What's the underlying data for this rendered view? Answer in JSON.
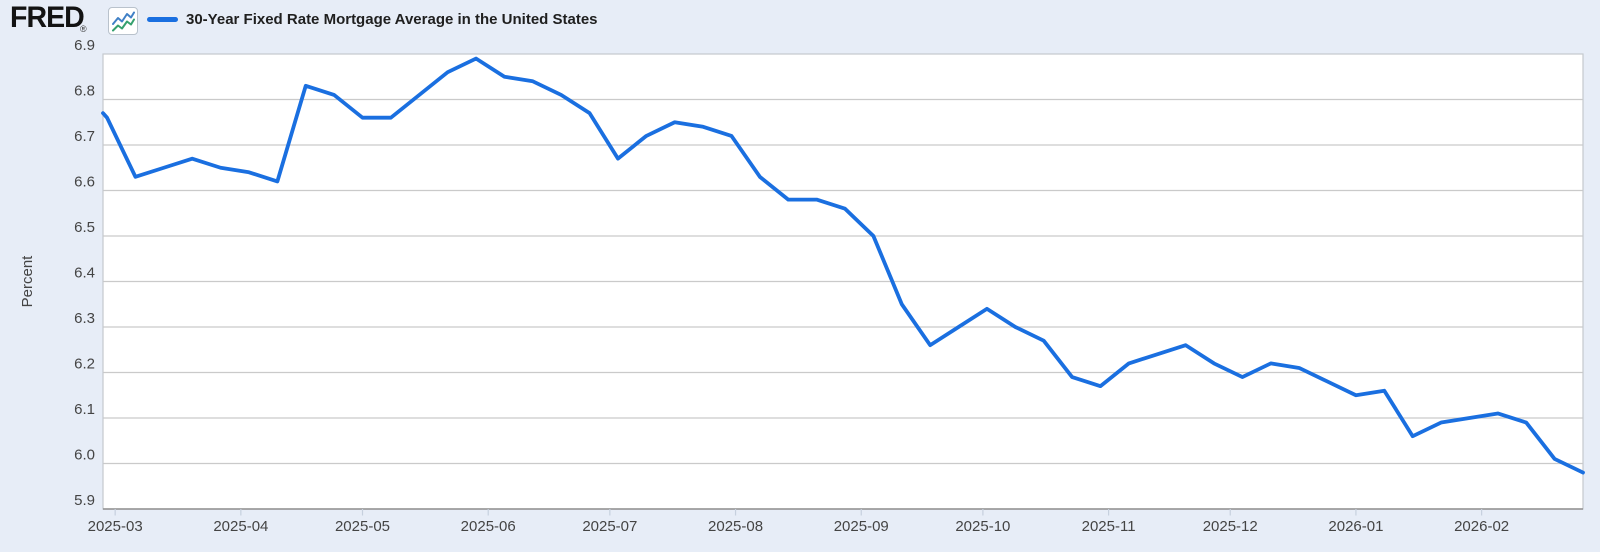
{
  "header": {
    "logo_text": "FRED",
    "registered_mark": "®",
    "legend_label": "30-Year Fixed Rate Mortgage Average in the United States"
  },
  "colors": {
    "page_background": "#e7edf7",
    "plot_background": "#ffffff",
    "plot_border": "#c5c9cd",
    "gridline": "#cacaca",
    "axis_line": "#8f8f8f",
    "tick_mark": "#c6d0de",
    "axis_text": "#444444",
    "title_text": "#1f1f1f",
    "series_line": "#1a6fe0",
    "icon_blue": "#4080c6",
    "icon_green": "#35a06e"
  },
  "chart_data": {
    "type": "line",
    "title": "30-Year Fixed Rate Mortgage Average in the United States",
    "ylabel": "Percent",
    "ylim": [
      5.9,
      6.9
    ],
    "yticks": [
      "5.9",
      "6.0",
      "6.1",
      "6.2",
      "6.3",
      "6.4",
      "6.5",
      "6.6",
      "6.7",
      "6.8",
      "6.9"
    ],
    "xtick_labels": [
      "2025-03",
      "2025-04",
      "2025-05",
      "2025-06",
      "2025-07",
      "2025-08",
      "2025-09",
      "2025-10",
      "2025-11",
      "2025-12",
      "2026-01",
      "2026-02"
    ],
    "x_domain": [
      "2025-02-26",
      "2026-02-26"
    ],
    "frequency": "weekly",
    "grid": "horizontal",
    "legend_position": "top-left",
    "left_edge_point": {
      "date": "2025-02-26",
      "value": 6.77
    },
    "series": [
      {
        "name": "30-Year Fixed Rate Mortgage Average in the United States",
        "units": "Percent",
        "dates": [
          "2025-02-27",
          "2025-03-06",
          "2025-03-13",
          "2025-03-20",
          "2025-03-27",
          "2025-04-03",
          "2025-04-10",
          "2025-04-17",
          "2025-04-24",
          "2025-05-01",
          "2025-05-08",
          "2025-05-15",
          "2025-05-22",
          "2025-05-29",
          "2025-06-05",
          "2025-06-12",
          "2025-06-19",
          "2025-06-26",
          "2025-07-03",
          "2025-07-10",
          "2025-07-17",
          "2025-07-24",
          "2025-07-31",
          "2025-08-07",
          "2025-08-14",
          "2025-08-21",
          "2025-08-28",
          "2025-09-04",
          "2025-09-11",
          "2025-09-18",
          "2025-09-25",
          "2025-10-02",
          "2025-10-09",
          "2025-10-16",
          "2025-10-23",
          "2025-10-30",
          "2025-11-06",
          "2025-11-13",
          "2025-11-20",
          "2025-11-27",
          "2025-12-04",
          "2025-12-11",
          "2025-12-18",
          "2025-12-25",
          "2026-01-01",
          "2026-01-08",
          "2026-01-15",
          "2026-01-22",
          "2026-01-29",
          "2026-02-05",
          "2026-02-12",
          "2026-02-19",
          "2026-02-26"
        ],
        "values": [
          6.76,
          6.63,
          6.65,
          6.67,
          6.65,
          6.64,
          6.62,
          6.83,
          6.81,
          6.76,
          6.76,
          6.81,
          6.86,
          6.89,
          6.85,
          6.84,
          6.81,
          6.77,
          6.67,
          6.72,
          6.75,
          6.74,
          6.72,
          6.63,
          6.58,
          6.58,
          6.56,
          6.5,
          6.35,
          6.26,
          6.3,
          6.34,
          6.3,
          6.27,
          6.19,
          6.17,
          6.22,
          6.24,
          6.26,
          6.22,
          6.19,
          6.22,
          6.21,
          6.18,
          6.15,
          6.16,
          6.06,
          6.09,
          6.1,
          6.11,
          6.09,
          6.01,
          5.98
        ]
      }
    ]
  }
}
